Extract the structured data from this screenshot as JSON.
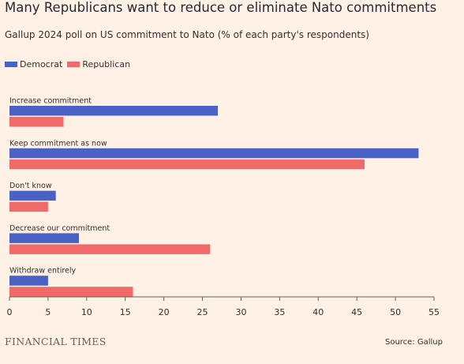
{
  "header": {
    "title": "Many Republicans want to reduce or eliminate Nato commitments",
    "subtitle": "Gallup 2024 poll on US commitment to Nato (% of each party's respondents)"
  },
  "footer": {
    "brand": "FINANCIAL TIMES",
    "source": "Source: Gallup"
  },
  "colors": {
    "background": "#fff1e5",
    "democrat": "#4a62c6",
    "republican": "#f06a6a"
  },
  "chart_data": {
    "type": "bar",
    "orientation": "horizontal",
    "categories": [
      "Increase commitment",
      "Keep commitment as now",
      "Don't know",
      "Decrease our commitment",
      "Withdraw entirely"
    ],
    "series": [
      {
        "name": "Democrat",
        "values": [
          27,
          53,
          6,
          9,
          5
        ]
      },
      {
        "name": "Republican",
        "values": [
          7,
          46,
          5,
          26,
          16
        ]
      }
    ],
    "xlim": [
      0,
      55
    ],
    "xticks": [
      "0",
      "5",
      "10",
      "15",
      "20",
      "25",
      "30",
      "35",
      "40",
      "45",
      "50",
      "55"
    ],
    "legend_placement": "top-left",
    "grid": false
  }
}
